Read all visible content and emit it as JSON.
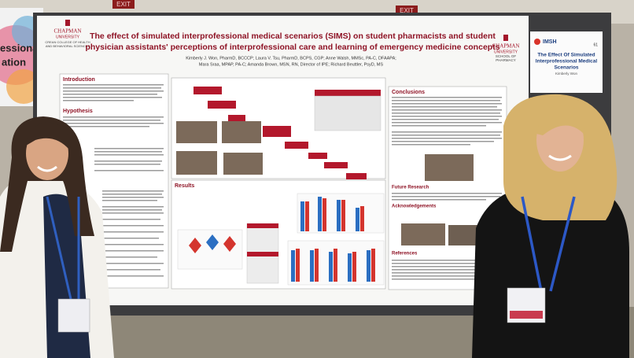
{
  "exit_signs": [
    "EXIT",
    "EXIT"
  ],
  "banner_left": {
    "lines": [
      "essional",
      "ation"
    ]
  },
  "poster": {
    "logo_left": {
      "name": "CHAPMAN",
      "sub": "UNIVERSITY",
      "college": [
        "CREAN COLLEGE OF HEALTH",
        "AND BEHAVIORAL SCIENCES"
      ]
    },
    "logo_right": {
      "name": "CHAPMAN",
      "sub": "UNIVERSITY",
      "school": [
        "SCHOOL OF",
        "PHARMACY"
      ]
    },
    "title_lines": [
      "The effect of simulated interprofessional medical scenarios (SIMS) on student pharmacists and student",
      "physician assistants' perceptions of interprofessional care and learning of emergency medicine concepts"
    ],
    "author_lines": [
      "Kimberly J. Won, PharmD, BCCCP; Laura V. Tsu, PharmD, BCPS, CGP; Anne Walsh, MMSc, PA-C, DFAAPA;",
      "Mara Sraa, MPAP, PA-C; Amanda Brown, MSN, RN, Director of IPE; Richard Beuttler, PsyD, MS"
    ],
    "sections": [
      "Introduction",
      "Hypothesis",
      "Results",
      "Conclusions",
      "Future Research",
      "Acknowledgements",
      "References"
    ]
  },
  "side_card": {
    "brand": "IMSH",
    "number": "61",
    "title_lines": [
      "The Effect Of Simulated",
      "Interprofessional Medical",
      "Scenarios"
    ],
    "name": "Kimberly Won"
  }
}
